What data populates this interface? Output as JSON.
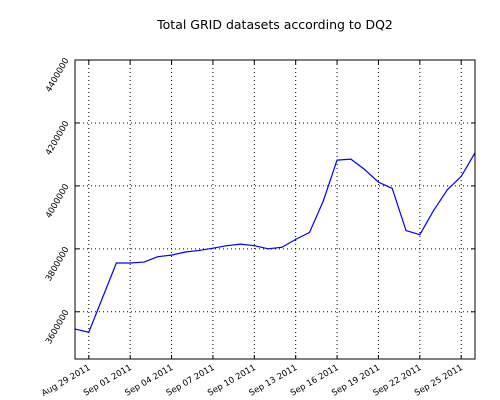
{
  "chart_data": {
    "type": "line",
    "title": "Total GRID datasets according to DQ2",
    "xlabel": "",
    "ylabel": "",
    "x_range": [
      "2011-08-28",
      "2011-09-26"
    ],
    "ylim": [
      3450000,
      4400000
    ],
    "x_ticks": [
      {
        "date": "2011-08-29",
        "label": "Aug 29 2011"
      },
      {
        "date": "2011-09-01",
        "label": "Sep 01 2011"
      },
      {
        "date": "2011-09-04",
        "label": "Sep 04 2011"
      },
      {
        "date": "2011-09-07",
        "label": "Sep 07 2011"
      },
      {
        "date": "2011-09-10",
        "label": "Sep 10 2011"
      },
      {
        "date": "2011-09-13",
        "label": "Sep 13 2011"
      },
      {
        "date": "2011-09-16",
        "label": "Sep 16 2011"
      },
      {
        "date": "2011-09-19",
        "label": "Sep 19 2011"
      },
      {
        "date": "2011-09-22",
        "label": "Sep 22 2011"
      },
      {
        "date": "2011-09-25",
        "label": "Sep 25 2011"
      }
    ],
    "y_ticks": [
      {
        "value": 3600000,
        "label": "3600000"
      },
      {
        "value": 3800000,
        "label": "3800000"
      },
      {
        "value": 4000000,
        "label": "4000000"
      },
      {
        "value": 4200000,
        "label": "4200000"
      },
      {
        "value": 4400000,
        "label": "4400000"
      }
    ],
    "grid": true,
    "series": [
      {
        "color": "#0000ff",
        "points": [
          {
            "x": "2011-08-28",
            "y": 3545000
          },
          {
            "x": "2011-08-29",
            "y": 3535000
          },
          {
            "x": "2011-08-31",
            "y": 3755000
          },
          {
            "x": "2011-09-01",
            "y": 3755000
          },
          {
            "x": "2011-09-02",
            "y": 3758000
          },
          {
            "x": "2011-09-03",
            "y": 3775000
          },
          {
            "x": "2011-09-04",
            "y": 3780000
          },
          {
            "x": "2011-09-05",
            "y": 3790000
          },
          {
            "x": "2011-09-06",
            "y": 3795000
          },
          {
            "x": "2011-09-07",
            "y": 3802000
          },
          {
            "x": "2011-09-08",
            "y": 3810000
          },
          {
            "x": "2011-09-09",
            "y": 3815000
          },
          {
            "x": "2011-09-10",
            "y": 3810000
          },
          {
            "x": "2011-09-11",
            "y": 3800000
          },
          {
            "x": "2011-09-12",
            "y": 3805000
          },
          {
            "x": "2011-09-13",
            "y": 3830000
          },
          {
            "x": "2011-09-14",
            "y": 3852000
          },
          {
            "x": "2011-09-15",
            "y": 3952000
          },
          {
            "x": "2011-09-16",
            "y": 4082000
          },
          {
            "x": "2011-09-17",
            "y": 4085000
          },
          {
            "x": "2011-09-18",
            "y": 4052000
          },
          {
            "x": "2011-09-19",
            "y": 4012000
          },
          {
            "x": "2011-09-20",
            "y": 3992000
          },
          {
            "x": "2011-09-21",
            "y": 3858000
          },
          {
            "x": "2011-09-22",
            "y": 3845000
          },
          {
            "x": "2011-09-23",
            "y": 3922000
          },
          {
            "x": "2011-09-24",
            "y": 3988000
          },
          {
            "x": "2011-09-25",
            "y": 4030000
          },
          {
            "x": "2011-09-26",
            "y": 4105000
          }
        ]
      }
    ]
  }
}
